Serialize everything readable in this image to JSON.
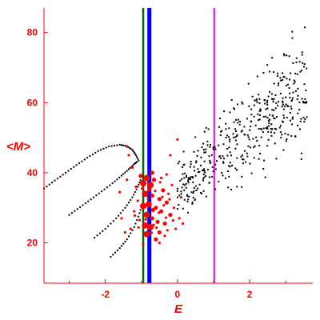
{
  "chart_data": {
    "type": "scatter",
    "xlabel": "E",
    "ylabel": "<M>",
    "xlim": [
      -3.7,
      3.75
    ],
    "ylim": [
      8.5,
      87
    ],
    "x_ticks": [
      -2,
      0,
      2
    ],
    "y_ticks": [
      20,
      40,
      60,
      80
    ],
    "grid": false,
    "colors": {
      "axis": "#ff0000",
      "field_points": "#000000",
      "red_blobs": "#ff0000",
      "line_green": "#006400",
      "line_blue": "#0000ff",
      "line_magenta": "#ff00ff"
    },
    "vertical_lines": [
      {
        "x": -0.95,
        "color": "#006400"
      },
      {
        "x": -0.78,
        "color": "#0000ff"
      },
      {
        "x": 1.02,
        "color": "#ff00ff"
      }
    ],
    "series": [
      {
        "kind": "dotted_curve",
        "points": [
          [
            -3.7,
            35.5
          ],
          [
            -3.4,
            37.8
          ],
          [
            -3.1,
            40.0
          ],
          [
            -2.8,
            42.2
          ],
          [
            -2.5,
            44.3
          ],
          [
            -2.2,
            46.2
          ],
          [
            -1.9,
            47.5
          ],
          [
            -1.6,
            48.0
          ],
          [
            -1.4,
            47.6
          ],
          [
            -1.25,
            46.5
          ],
          [
            -1.15,
            45.0
          ],
          [
            -1.05,
            43.0
          ]
        ]
      },
      {
        "kind": "dotted_curve",
        "points": [
          [
            -3.0,
            28.0
          ],
          [
            -2.7,
            30.2
          ],
          [
            -2.4,
            32.4
          ],
          [
            -2.1,
            34.7
          ],
          [
            -1.8,
            37.0
          ],
          [
            -1.55,
            39.2
          ],
          [
            -1.35,
            41.0
          ],
          [
            -1.2,
            42.5
          ],
          [
            -1.1,
            43.3
          ]
        ]
      },
      {
        "kind": "dotted_curve",
        "points": [
          [
            -2.3,
            21.5
          ],
          [
            -2.0,
            24.0
          ],
          [
            -1.7,
            27.0
          ],
          [
            -1.45,
            30.0
          ],
          [
            -1.25,
            33.0
          ],
          [
            -1.1,
            36.0
          ],
          [
            -1.0,
            38.5
          ]
        ]
      },
      {
        "kind": "dotted_curve",
        "points": [
          [
            -1.85,
            16.0
          ],
          [
            -1.6,
            18.5
          ],
          [
            -1.4,
            21.0
          ],
          [
            -1.2,
            24.5
          ],
          [
            -1.05,
            28.5
          ],
          [
            -0.95,
            32.0
          ]
        ]
      },
      {
        "kind": "scatter_band",
        "x_range": [
          0.0,
          3.6
        ],
        "y_lo": [
          26.0,
          40.0
        ],
        "y_hi": [
          46.0,
          88.0
        ],
        "count": 430
      },
      {
        "kind": "red_cluster",
        "points": [
          [
            -0.85,
            38.5
          ],
          [
            -0.95,
            37.0
          ],
          [
            -0.75,
            36.5
          ],
          [
            -0.9,
            34.0
          ],
          [
            -0.7,
            33.5
          ],
          [
            -0.8,
            31.0
          ],
          [
            -0.95,
            30.5
          ],
          [
            -0.6,
            30.0
          ],
          [
            -0.85,
            28.0
          ],
          [
            -0.7,
            27.0
          ],
          [
            -0.9,
            25.0
          ],
          [
            -0.75,
            24.5
          ],
          [
            -0.85,
            22.5
          ],
          [
            -0.5,
            32.5
          ],
          [
            -0.45,
            29.0
          ],
          [
            -0.4,
            35.0
          ],
          [
            -0.3,
            31.5
          ],
          [
            -0.55,
            26.0
          ],
          [
            -0.35,
            25.5
          ],
          [
            -0.2,
            28.0
          ],
          [
            -0.6,
            21.0
          ],
          [
            -0.5,
            23.0
          ],
          [
            -1.1,
            32.0
          ],
          [
            -1.2,
            29.0
          ],
          [
            -1.05,
            26.5
          ],
          [
            -1.3,
            24.0
          ],
          [
            -1.15,
            36.0
          ],
          [
            -1.4,
            38.0
          ],
          [
            -0.25,
            34.0
          ],
          [
            -0.15,
            36.5
          ],
          [
            -0.1,
            30.0
          ],
          [
            0.05,
            27.0
          ],
          [
            -0.05,
            24.0
          ],
          [
            0.1,
            33.0
          ],
          [
            -0.65,
            38.0
          ],
          [
            -0.7,
            40.0
          ],
          [
            -1.25,
            41.5
          ],
          [
            -1.35,
            45.0
          ],
          [
            -1.4,
            47.5
          ],
          [
            -0.2,
            45.0
          ],
          [
            0.0,
            49.5
          ],
          [
            -0.45,
            38.5
          ],
          [
            -0.3,
            39.5
          ],
          [
            -1.55,
            27.0
          ],
          [
            -1.45,
            23.0
          ],
          [
            -0.95,
            19.5
          ],
          [
            -0.5,
            20.0
          ],
          [
            -0.35,
            22.0
          ],
          [
            0.15,
            25.5
          ],
          [
            -1.6,
            34.5
          ],
          [
            -0.58,
            24.3
          ],
          [
            -0.78,
            35.2
          ],
          [
            -0.42,
            33.1
          ],
          [
            -0.68,
            29.4
          ],
          [
            -0.88,
            26.7
          ],
          [
            -1.02,
            39.1
          ],
          [
            -0.32,
            27.2
          ],
          [
            -0.22,
            32.4
          ],
          [
            -0.48,
            37.3
          ],
          [
            -1.18,
            27.8
          ],
          [
            -0.12,
            26.4
          ],
          [
            -0.62,
            34.8
          ],
          [
            -0.98,
            35.5
          ],
          [
            -0.72,
            22.9
          ],
          [
            -0.28,
            23.6
          ],
          [
            -1.08,
            24.4
          ],
          [
            -0.52,
            28.6
          ],
          [
            -0.82,
            32.7
          ],
          [
            -0.38,
            30.7
          ],
          [
            -0.66,
            25.1
          ]
        ],
        "sizes": [
          3,
          3,
          3,
          3,
          2,
          3,
          3,
          2,
          3,
          2,
          3,
          3,
          3,
          2,
          2,
          2,
          2,
          2,
          2,
          2,
          2,
          2,
          1,
          1,
          1,
          1,
          1,
          1,
          1,
          1,
          1,
          1,
          1,
          1,
          2,
          2,
          1,
          1,
          1,
          1,
          1,
          1,
          1,
          1,
          1,
          1,
          1,
          1,
          1,
          1,
          1,
          2,
          1,
          2,
          1,
          2,
          1,
          1,
          1,
          1,
          1,
          1,
          1,
          1,
          1,
          1,
          1,
          1,
          1,
          1
        ]
      }
    ]
  }
}
